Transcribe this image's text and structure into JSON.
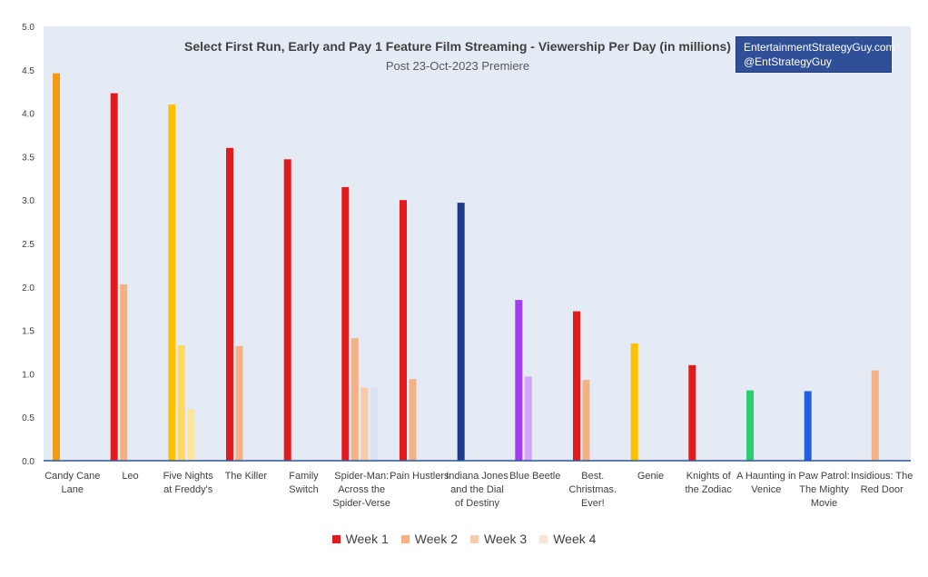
{
  "chart_data": {
    "type": "bar",
    "title": "Select First Run, Early and Pay 1 Feature Film Streaming - Viewership Per Day (in millions)",
    "subtitle": "Post 23-Oct-2023 Premiere",
    "xlabel": "",
    "ylabel": "",
    "ylim": [
      0,
      5
    ],
    "yticks": [
      "0.0",
      "0.5",
      "1.0",
      "1.5",
      "2.0",
      "2.5",
      "3.0",
      "3.5",
      "4.0",
      "4.5",
      "5.0"
    ],
    "grid": false,
    "categories": [
      [
        "Candy Cane",
        "Lane"
      ],
      [
        "Leo"
      ],
      [
        "Five Nights",
        "at Freddy's"
      ],
      [
        "The Killer"
      ],
      [
        "Family",
        "Switch"
      ],
      [
        "Spider-Man:",
        "Across the",
        "Spider-Verse"
      ],
      [
        "Pain Hustlers"
      ],
      [
        "Indiana Jones",
        "and the Dial",
        "of Destiny"
      ],
      [
        "Blue Beetle"
      ],
      [
        "Best.",
        "Christmas.",
        "Ever!"
      ],
      [
        "Genie"
      ],
      [
        "Knights of",
        "the Zodiac"
      ],
      [
        "A Haunting in",
        "Venice"
      ],
      [
        "Paw Patrol:",
        "The Mighty",
        "Movie"
      ],
      [
        "Insidious: The",
        "Red Door"
      ]
    ],
    "series": [
      {
        "name": "Week 1",
        "color": "#e31a1c",
        "values": [
          null,
          4.23,
          null,
          3.6,
          3.47,
          3.15,
          3.0,
          null,
          null,
          1.72,
          null,
          1.1,
          null,
          null,
          null
        ]
      },
      {
        "name": "Week 2",
        "color": "#f4b183",
        "values": [
          null,
          2.03,
          null,
          1.32,
          null,
          1.41,
          0.94,
          null,
          null,
          0.93,
          null,
          null,
          null,
          null,
          1.04
        ]
      },
      {
        "name": "Week 3",
        "color": "#f8cbad",
        "values": [
          null,
          null,
          null,
          null,
          null,
          0.84,
          null,
          null,
          null,
          null,
          null,
          null,
          null,
          null,
          null
        ]
      },
      {
        "name": "Week 4",
        "color": "#fce4d6",
        "values": [
          null,
          null,
          null,
          null,
          null,
          0.84,
          null,
          null,
          null,
          null,
          null,
          null,
          null,
          null,
          null
        ]
      }
    ],
    "special_bars": [
      {
        "category": 0,
        "week": 1,
        "value": 4.46,
        "color": "#f39c12"
      },
      {
        "category": 2,
        "week": 1,
        "value": 4.1,
        "color": "#ffc000"
      },
      {
        "category": 2,
        "week": 2,
        "value": 1.33,
        "color": "#ffd966"
      },
      {
        "category": 2,
        "week": 3,
        "value": 0.59,
        "color": "#ffe699"
      },
      {
        "category": 5,
        "week": 4,
        "value": 0.84,
        "color": "#d9e1f2"
      },
      {
        "category": 7,
        "week": 1,
        "value": 2.97,
        "color": "#1f3c88"
      },
      {
        "category": 8,
        "week": 1,
        "value": 1.85,
        "color": "#a23cf0"
      },
      {
        "category": 8,
        "week": 2,
        "value": 0.97,
        "color": "#d3a6f7"
      },
      {
        "category": 10,
        "week": 1,
        "value": 1.35,
        "color": "#ffc000"
      },
      {
        "category": 12,
        "week": 1,
        "value": 0.81,
        "color": "#2ecc71"
      },
      {
        "category": 13,
        "week": 1,
        "value": 0.8,
        "color": "#1f5fe0"
      }
    ],
    "legend_position": "bottom-center"
  },
  "watermark": {
    "line1": "EntertainmentStrategyGuy.com",
    "line2": "@EntStrategyGuy"
  },
  "legend": [
    {
      "label": "Week 1",
      "color": "#e31a1c"
    },
    {
      "label": "Week 2",
      "color": "#f4b183"
    },
    {
      "label": "Week 3",
      "color": "#f8cbad"
    },
    {
      "label": "Week 4",
      "color": "#fce4d6"
    }
  ],
  "colors": {
    "plot_background": "#e4ebf5",
    "axis": "#2f5597",
    "text": "#404040"
  }
}
